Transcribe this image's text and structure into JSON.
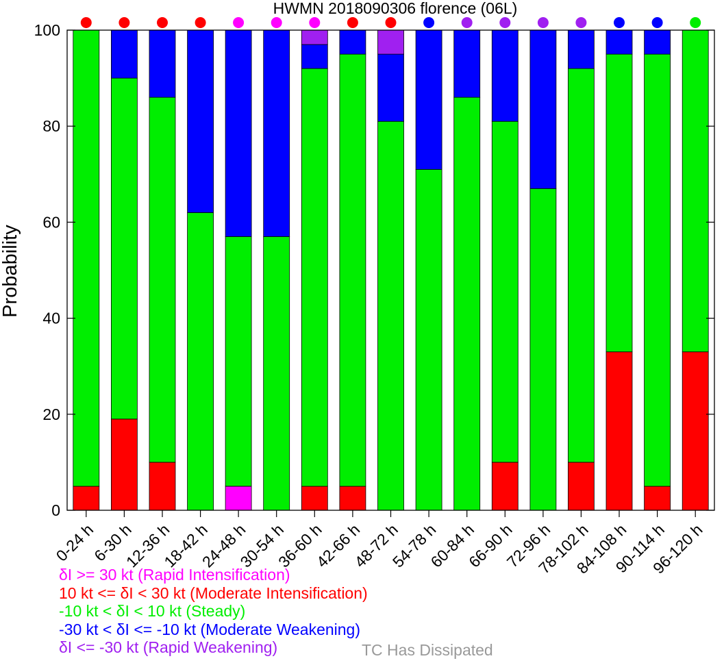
{
  "chart_data": {
    "type": "bar",
    "stacked": true,
    "title": "HWMN 2018090306 florence (06L)",
    "xlabel": "",
    "ylabel": "Probability",
    "ylim": [
      0,
      100
    ],
    "yticks": [
      0,
      20,
      40,
      60,
      80,
      100
    ],
    "grid": false,
    "categories": [
      "0-24 h",
      "6-30 h",
      "12-36 h",
      "18-42 h",
      "24-48 h",
      "30-54 h",
      "36-60 h",
      "42-66 h",
      "48-72 h",
      "54-78 h",
      "60-84 h",
      "66-90 h",
      "72-96 h",
      "78-102 h",
      "84-108 h",
      "90-114 h",
      "96-120 h"
    ],
    "series": [
      {
        "key": "ri",
        "color": "#ff00ff",
        "values": [
          0,
          0,
          0,
          0,
          5,
          0,
          0,
          0,
          0,
          0,
          0,
          0,
          0,
          0,
          0,
          0,
          0
        ]
      },
      {
        "key": "mi",
        "color": "#ff0000",
        "values": [
          5,
          19,
          10,
          0,
          0,
          0,
          5,
          5,
          0,
          0,
          0,
          10,
          0,
          10,
          33,
          5,
          33
        ]
      },
      {
        "key": "steady",
        "color": "#00ee00",
        "values": [
          95,
          71,
          76,
          62,
          52,
          57,
          87,
          90,
          81,
          71,
          86,
          71,
          67,
          82,
          62,
          90,
          67
        ]
      },
      {
        "key": "mw",
        "color": "#0000ff",
        "values": [
          0,
          10,
          14,
          38,
          43,
          43,
          5,
          5,
          14,
          29,
          14,
          19,
          33,
          8,
          5,
          5,
          0
        ]
      },
      {
        "key": "rw",
        "color": "#a020f0",
        "values": [
          0,
          0,
          0,
          0,
          0,
          0,
          3,
          0,
          5,
          0,
          0,
          0,
          0,
          0,
          0,
          0,
          0
        ]
      }
    ],
    "top_markers": [
      "mi",
      "mi",
      "mi",
      "mi",
      "ri",
      "ri",
      "ri",
      "mi",
      "mi",
      "mw",
      "rw",
      "rw",
      "rw",
      "rw",
      "mw",
      "mw",
      "steady"
    ],
    "legend_placement": "bottom-left"
  },
  "legend": {
    "ri": {
      "label": "δI >= 30 kt (Rapid Intensification)",
      "color": "#ff00ff"
    },
    "mi": {
      "label": "10 kt <= δI < 30 kt (Moderate Intensification)",
      "color": "#ff0000"
    },
    "steady": {
      "label": "-10 kt < δI < 10 kt (Steady)",
      "color": "#00ee00"
    },
    "mw": {
      "label": "-30 kt < δI <= -10 kt (Moderate Weakening)",
      "color": "#0000ff"
    },
    "rw": {
      "label": "δI <= -30 kt (Rapid Weakening)",
      "color": "#a020f0"
    },
    "dissipated": {
      "label": "TC Has Dissipated",
      "color": "#999999"
    }
  }
}
